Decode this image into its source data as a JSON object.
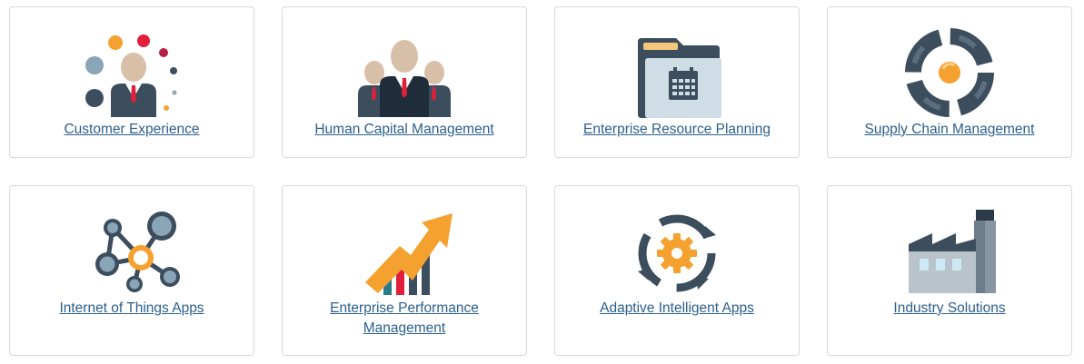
{
  "cards": [
    {
      "label": "Customer Experience",
      "icon": "customer-experience-icon"
    },
    {
      "label": "Human Capital Management",
      "icon": "human-capital-icon"
    },
    {
      "label": "Enterprise Resource Planning",
      "icon": "erp-folder-icon"
    },
    {
      "label": "Supply Chain Management",
      "icon": "supply-chain-cycle-icon"
    },
    {
      "label": "Internet of Things Apps",
      "icon": "iot-network-icon"
    },
    {
      "label": "Enterprise Performance Management",
      "icon": "performance-chart-icon"
    },
    {
      "label": "Adaptive Intelligent Apps",
      "icon": "gear-cycle-icon"
    },
    {
      "label": "Industry Solutions",
      "icon": "factory-icon"
    }
  ],
  "colors": {
    "link": "#2b5f8e",
    "border": "#d9d9d9",
    "navy": "#3c4e5e",
    "orange": "#f5a130",
    "red": "#e0203a",
    "skin": "#d8bfa8",
    "steel": "#8aa4b8"
  }
}
